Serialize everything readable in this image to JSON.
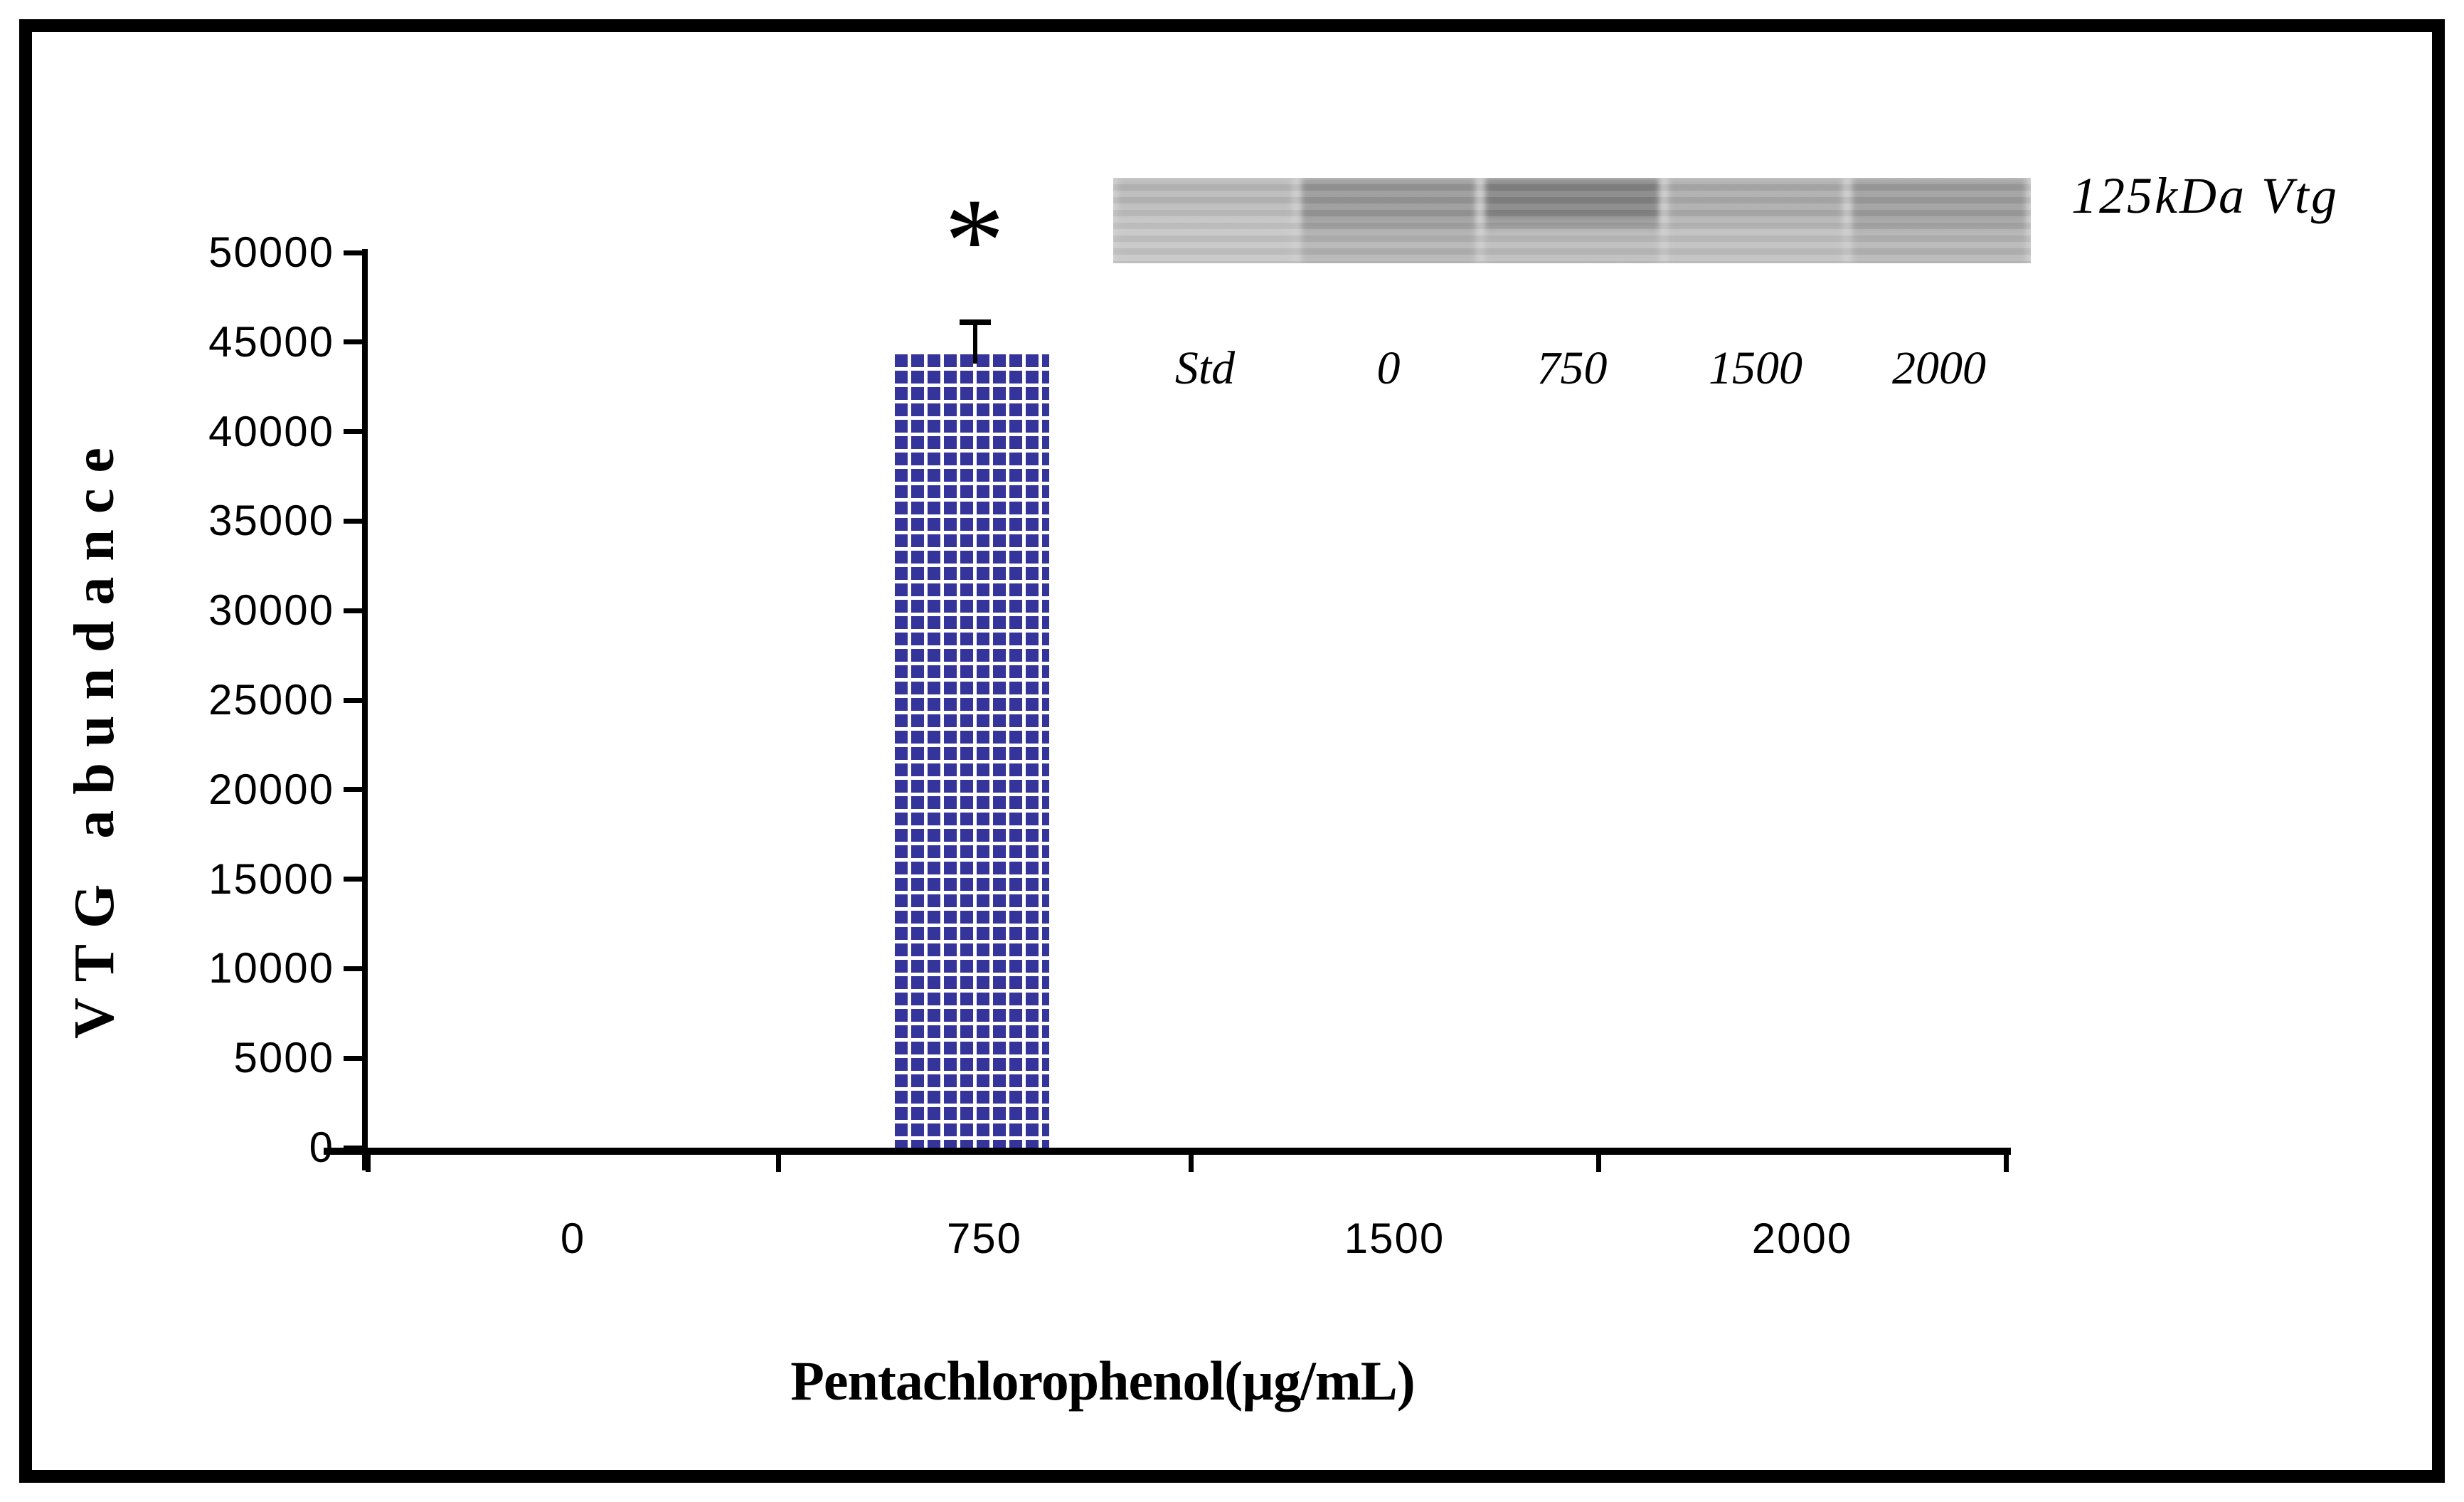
{
  "figure": {
    "background": "#ffffff",
    "frame_color": "#000000"
  },
  "chart_data": {
    "type": "bar",
    "title": "",
    "xlabel": "Pentachlorophenol(µg/mL)",
    "ylabel": "VTG abundance",
    "categories": [
      "0",
      "750",
      "1500",
      "2000"
    ],
    "values": [
      0,
      44500,
      0,
      0
    ],
    "error_plus": [
      0,
      1600,
      0,
      0
    ],
    "significance": [
      "",
      "*",
      "",
      ""
    ],
    "ylim": [
      0,
      50000
    ],
    "y_ticks": [
      0,
      5000,
      10000,
      15000,
      20000,
      25000,
      30000,
      35000,
      40000,
      45000,
      50000
    ],
    "bar_color": "#34349B",
    "bar_pattern": "small-grid",
    "grid": false,
    "legend": "none"
  },
  "inset": {
    "name": "western-blot",
    "band_label": "125kDa Vtg",
    "gel_base_color": "#c9c9c9",
    "lanes": [
      {
        "label": "Std",
        "band_color": "#b7b7b7",
        "body_color": "#c4c4c4",
        "band_h": 30
      },
      {
        "label": "0",
        "band_color": "#969696",
        "body_color": "#b2b2b2",
        "band_h": 45
      },
      {
        "label": "750",
        "band_color": "#828282",
        "body_color": "#bababa",
        "band_h": 42
      },
      {
        "label": "1500",
        "band_color": "#aaaaaa",
        "body_color": "#bebebe",
        "band_h": 40
      },
      {
        "label": "2000",
        "band_color": "#9c9c9c",
        "body_color": "#b4b4b4",
        "band_h": 45
      }
    ]
  }
}
